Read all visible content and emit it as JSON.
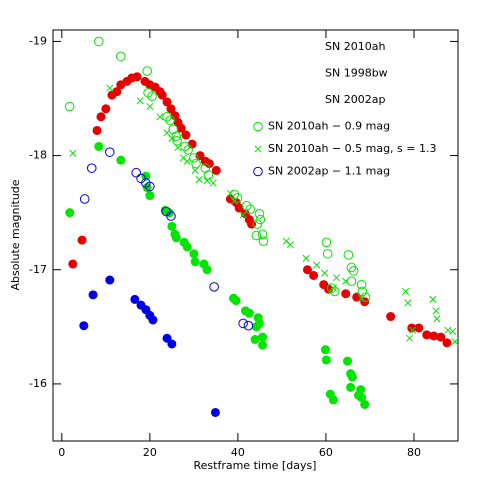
{
  "chart_data": {
    "type": "scatter",
    "xlabel": "Restframe time [days]",
    "ylabel": "Absolute magnitude",
    "xlim": [
      -2,
      90
    ],
    "ylim": [
      -15.5,
      -19.1
    ],
    "xticks": [
      0,
      20,
      40,
      60,
      80
    ],
    "yticks": [
      -19,
      -18,
      -17,
      -16
    ],
    "series": [
      {
        "name": "SN 2010ah",
        "color": "#00e600",
        "marker": "filled",
        "legend_marker": false,
        "x": [
          1.8,
          8.4,
          13.4,
          19.1,
          19.4,
          20,
          23.5,
          24.4,
          25,
          25.7,
          26,
          27.8,
          28.5,
          30,
          30.3,
          32.3,
          33,
          39,
          39.6,
          41.7,
          42.6,
          44.6,
          44.9,
          44.2,
          43.9,
          45.6,
          45.6,
          59.9,
          60.1,
          61,
          61.7,
          64.9,
          65.6,
          66,
          65.6,
          67.9,
          68.1,
          68.8,
          67.4
        ],
        "values": [
          -17.5,
          -18.08,
          -17.96,
          -17.82,
          -17.72,
          -17.65,
          -17.52,
          -17.5,
          -17.38,
          -17.31,
          -17.28,
          -17.24,
          -17.2,
          -17.14,
          -17.07,
          -17.05,
          -17,
          -16.75,
          -16.73,
          -16.64,
          -16.62,
          -16.58,
          -16.53,
          -16.5,
          -16.39,
          -16.41,
          -16.34,
          -16.3,
          -16.21,
          -15.91,
          -15.86,
          -16.2,
          -16.09,
          -16.06,
          -15.97,
          -15.95,
          -15.88,
          -15.82,
          -15.9
        ]
      },
      {
        "name": "SN 1998bw",
        "color": "#e60000",
        "marker": "filled",
        "legend_marker": false,
        "x": [
          2.5,
          4.6,
          8,
          8.9,
          10,
          11.4,
          12.5,
          13.4,
          14.8,
          15.9,
          17.1,
          18.9,
          20,
          21.2,
          22.3,
          22.8,
          23.9,
          24.8,
          25.7,
          26.4,
          27.1,
          28.2,
          29.6,
          31.4,
          32.6,
          33.5,
          35.1,
          38.3,
          39.6,
          40.3,
          41.7,
          42.6,
          43.1,
          55.8,
          57.2,
          59.5,
          60.6,
          64.5,
          67,
          68.8,
          74.7,
          79.5,
          81.1,
          82.9,
          84.5,
          86.1,
          87.5
        ],
        "values": [
          -17.05,
          -17.26,
          -18.22,
          -18.34,
          -18.41,
          -18.53,
          -18.56,
          -18.62,
          -18.65,
          -18.68,
          -18.69,
          -18.65,
          -18.62,
          -18.6,
          -18.56,
          -18.53,
          -18.47,
          -18.41,
          -18.35,
          -18.29,
          -18.24,
          -18.18,
          -18.1,
          -18,
          -17.95,
          -17.93,
          -17.87,
          -17.62,
          -17.59,
          -17.54,
          -17.49,
          -17.44,
          -17.4,
          -17,
          -16.95,
          -16.87,
          -16.83,
          -16.79,
          -16.76,
          -16.72,
          -16.59,
          -16.49,
          -16.49,
          -16.43,
          -16.42,
          -16.41,
          -16.36
        ]
      },
      {
        "name": "SN 2002ap",
        "color": "#0000e6",
        "marker": "filled",
        "legend_marker": false,
        "x": [
          5,
          7.1,
          10.9,
          16.6,
          18,
          19.1,
          20,
          20.7,
          23.9,
          25,
          34.9
        ],
        "values": [
          -16.51,
          -16.78,
          -16.91,
          -16.74,
          -16.69,
          -16.65,
          -16.6,
          -16.56,
          -16.4,
          -16.35,
          -15.75
        ]
      },
      {
        "name": "SN 2010ah − 0.9 mag",
        "color": "#00e600",
        "marker": "open",
        "legend_marker": true,
        "x": [
          1.8,
          8.4,
          13.4,
          19.4,
          19.6,
          20.5,
          23.9,
          24.6,
          25.3,
          26,
          26.2,
          28,
          28.7,
          30,
          30.5,
          32.6,
          33.3,
          39.2,
          39.9,
          42,
          42.8,
          44.9,
          45.1,
          44.4,
          44.2,
          45.6,
          45.8,
          60.1,
          60.4,
          61.3,
          62,
          65.1,
          65.8,
          66.3,
          65.8,
          68.1,
          68.3,
          69
        ],
        "values": [
          -18.43,
          -19,
          -18.87,
          -18.74,
          -18.55,
          -18.52,
          -18.34,
          -18.31,
          -18.23,
          -18.17,
          -18.13,
          -18.08,
          -18.05,
          -17.98,
          -17.93,
          -17.89,
          -17.83,
          -17.66,
          -17.63,
          -17.56,
          -17.53,
          -17.49,
          -17.44,
          -17.4,
          -17.3,
          -17.31,
          -17.25,
          -17.24,
          -17.14,
          -16.84,
          -16.81,
          -17.13,
          -17.02,
          -16.99,
          -16.9,
          -16.87,
          -16.81,
          -16.76
        ]
      },
      {
        "name": "SN 2010ah − 0.5 mag, s = 1.3",
        "color": "#00e600",
        "marker": "cross",
        "legend_marker": true,
        "x": [
          2.5,
          10.9,
          17.8,
          20,
          22.3,
          23.9,
          25,
          26.4,
          27.6,
          28.5,
          30.3,
          31.2,
          33,
          34.4,
          38.3,
          39.2,
          41.2,
          51,
          51.9,
          55.5,
          57.9,
          59.7,
          61.7,
          62.4,
          64.5,
          68.1,
          78.1,
          78.6,
          79,
          79.7,
          84.3,
          85,
          85.2,
          87.7,
          89.3,
          88.8
        ],
        "values": [
          -18.02,
          -18.59,
          -18.48,
          -18.43,
          -18.34,
          -18.2,
          -18.15,
          -18.07,
          -17.98,
          -17.95,
          -17.87,
          -17.79,
          -17.78,
          -17.76,
          -17.67,
          -17.6,
          -17.48,
          -17.25,
          -17.22,
          -17.1,
          -17.04,
          -16.97,
          -16.84,
          -16.93,
          -16.9,
          -16.75,
          -16.81,
          -16.71,
          -16.4,
          -16.47,
          -16.74,
          -16.64,
          -16.57,
          -16.47,
          -16.37,
          -16.46
        ]
      },
      {
        "name": "SN 2002ap − 1.1 mag",
        "color": "#0000e6",
        "marker": "open",
        "legend_marker": true,
        "x": [
          5.2,
          6.8,
          10.9,
          16.9,
          18,
          19.1,
          20,
          23.7,
          24.8,
          34.6,
          41.2,
          42.4
        ],
        "values": [
          -17.62,
          -17.89,
          -18.03,
          -17.85,
          -17.8,
          -17.76,
          -17.73,
          -17.51,
          -17.47,
          -16.85,
          -16.53,
          -16.51
        ]
      }
    ]
  }
}
